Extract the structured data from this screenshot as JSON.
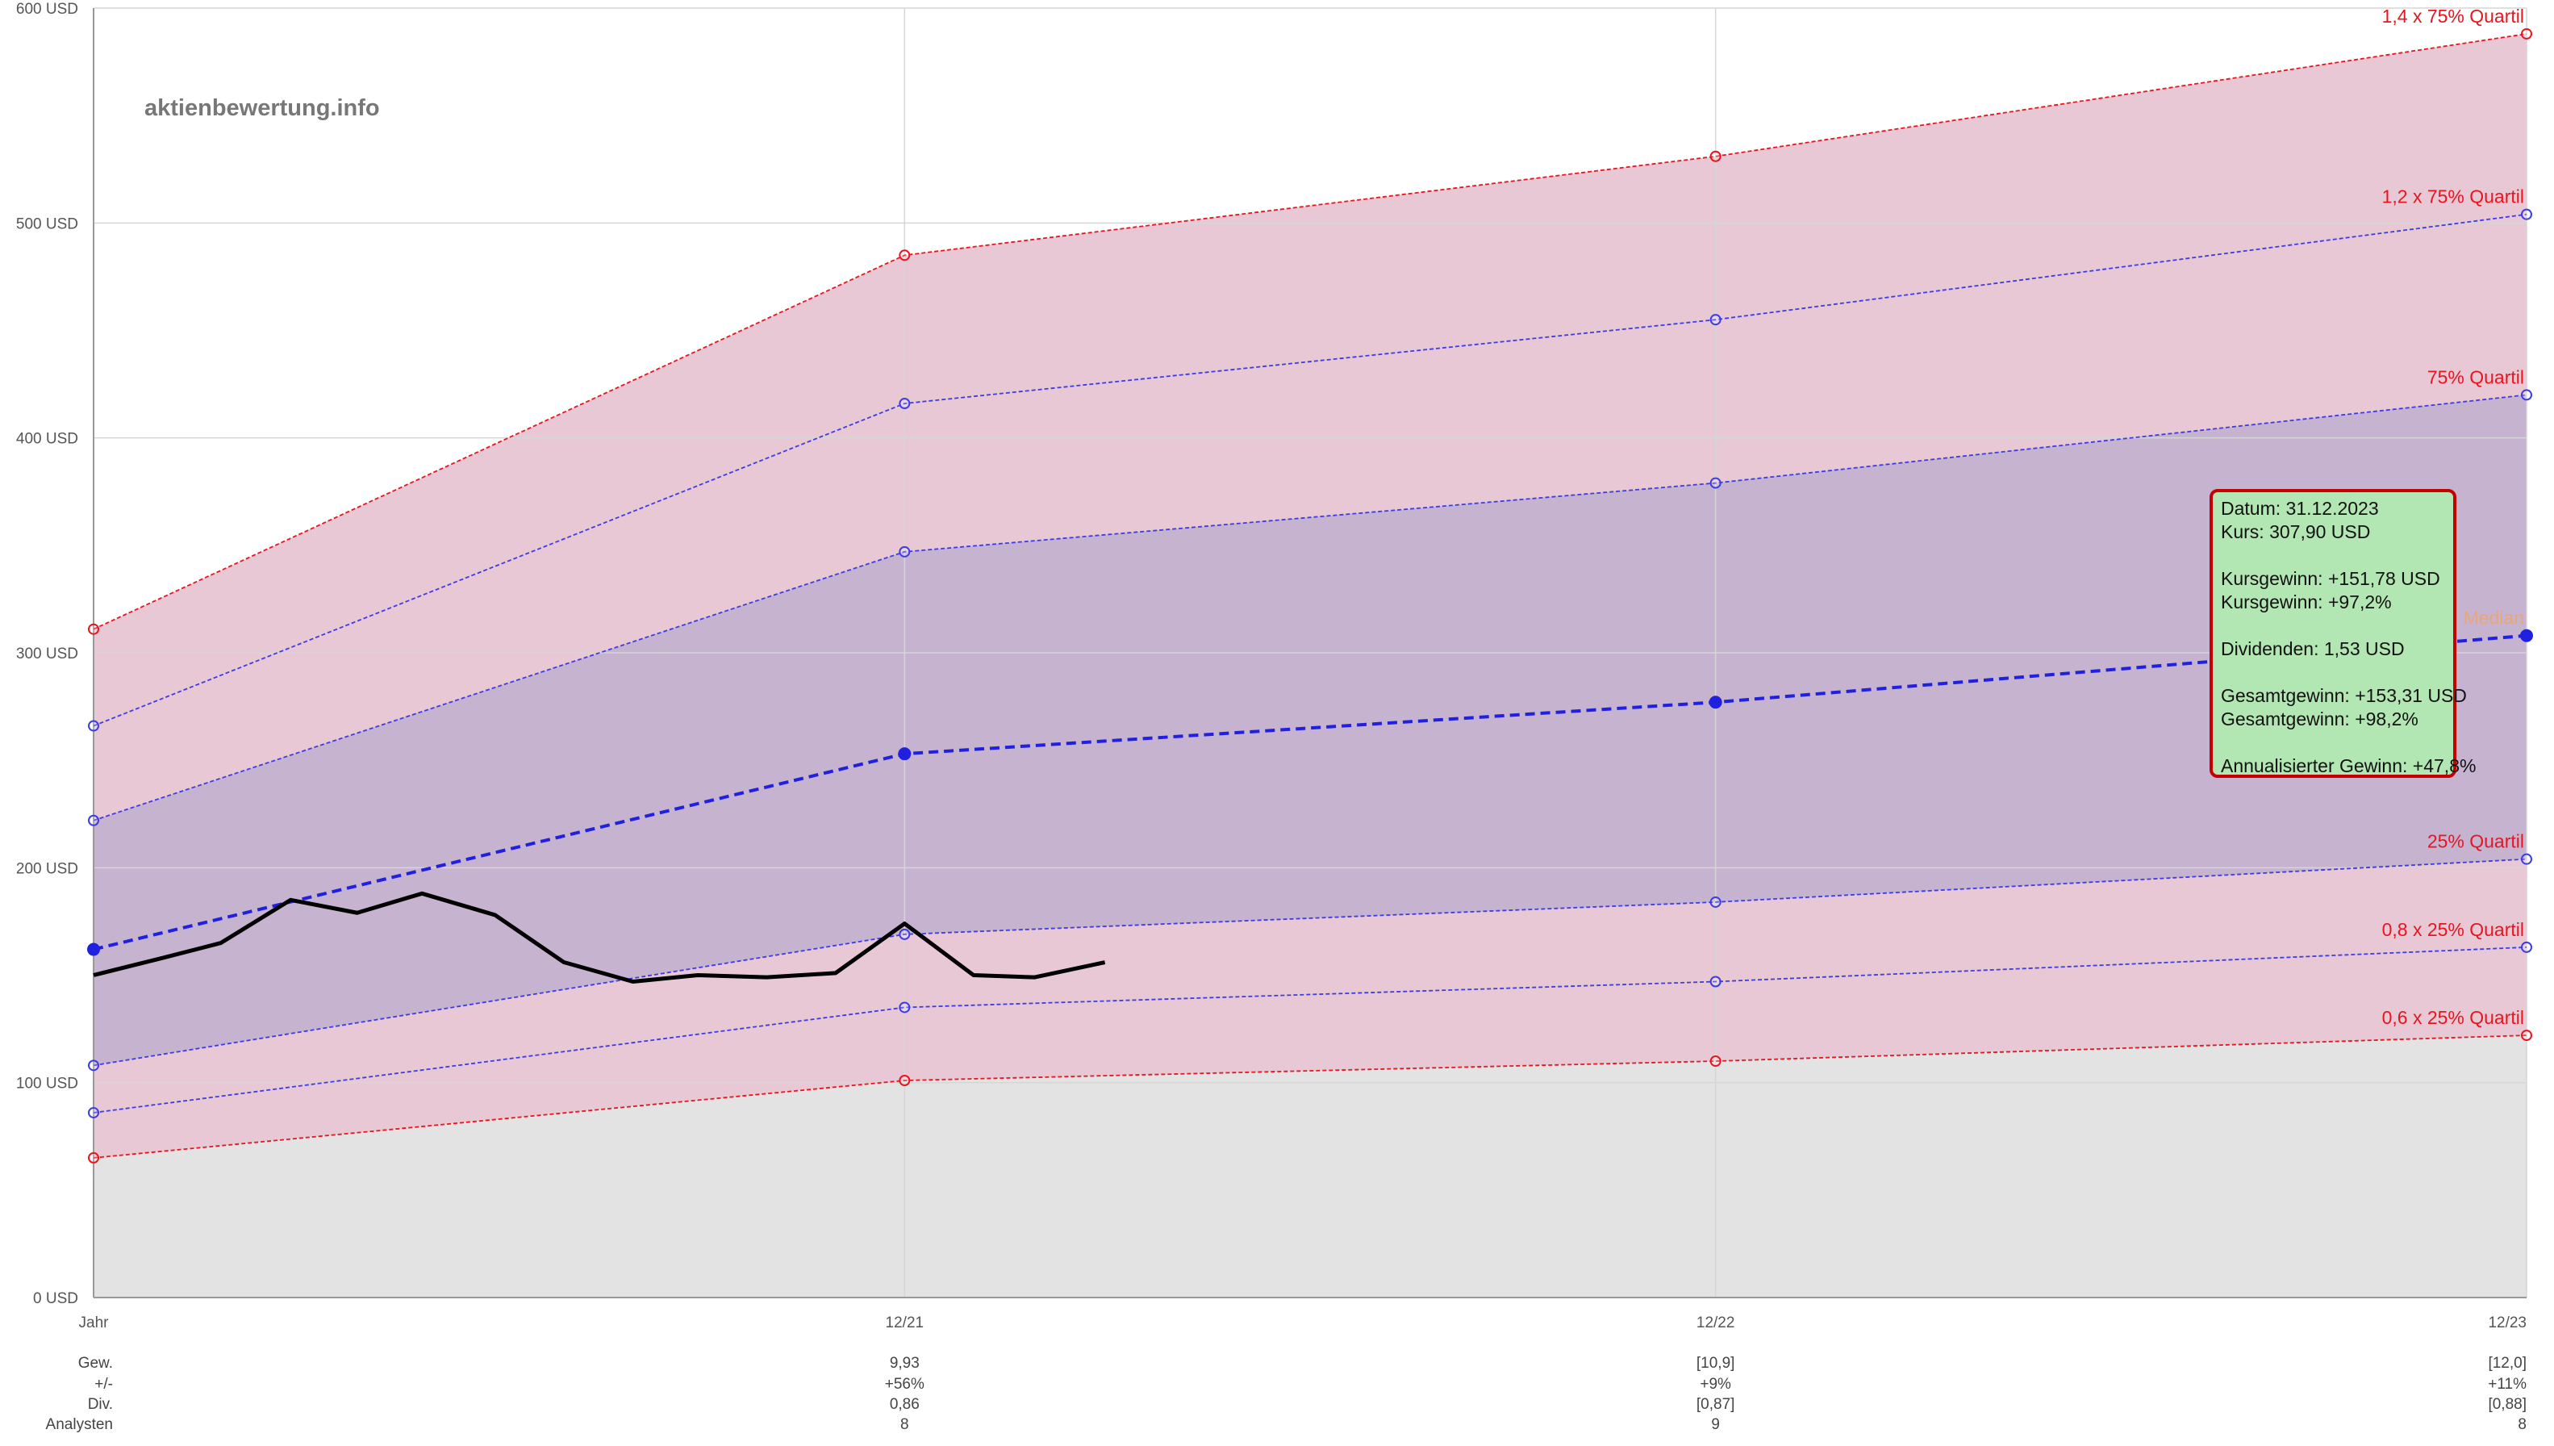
{
  "watermark": "aktienbewertung.info",
  "chart_data": {
    "type": "area",
    "y_axis": {
      "min": 0,
      "max": 600,
      "unit": "USD",
      "tick_labels": [
        "0 USD",
        "100 USD",
        "200 USD",
        "300 USD",
        "400 USD",
        "500 USD",
        "600 USD"
      ]
    },
    "x_axis": {
      "tick_labels": [
        "Jahr",
        "12/21",
        "12/22",
        "12/23"
      ]
    },
    "grid": true,
    "bands": [
      {
        "name": "1,4 x 75% Quartil",
        "color": "#e8141e",
        "values": [
          311,
          485,
          531,
          588
        ]
      },
      {
        "name": "1,2 x 75% Quartil",
        "color": "#3c3ce6",
        "values": [
          266,
          416,
          455,
          504
        ]
      },
      {
        "name": "75% Quartil",
        "color": "#3c3ce6",
        "values": [
          222,
          347,
          379,
          420
        ]
      },
      {
        "name": "Median",
        "color": "#2020e0",
        "values": [
          162,
          253,
          277,
          308
        ]
      },
      {
        "name": "25% Quartil",
        "color": "#3c3ce6",
        "values": [
          108,
          169,
          184,
          204
        ]
      },
      {
        "name": "0,8 x 25% Quartil",
        "color": "#3c3ce6",
        "values": [
          86,
          135,
          147,
          163
        ]
      },
      {
        "name": "0,6 x 25% Quartil",
        "color": "#e8141e",
        "values": [
          65,
          101,
          110,
          122
        ]
      }
    ],
    "price_series": {
      "x": [
        0,
        0.085,
        0.157,
        0.243,
        0.325,
        0.405,
        0.495,
        0.58,
        0.665,
        0.745,
        0.83,
        0.915,
        1.0,
        1.085,
        1.16,
        1.247
      ],
      "y": [
        150,
        158,
        165,
        185,
        179,
        188,
        178,
        156,
        147,
        150,
        149,
        151,
        174,
        150,
        149,
        156
      ]
    },
    "table": {
      "row_labels": [
        "Gew.",
        "+/-",
        "Div.",
        "Analysten"
      ],
      "columns": [
        [
          "9,93",
          "+56%",
          "0,86",
          "8"
        ],
        [
          "[10,9]",
          "+9%",
          "[0,87]",
          "9"
        ],
        [
          "[12,0]",
          "+11%",
          "[0,88]",
          "8"
        ]
      ]
    }
  },
  "tooltip": {
    "lines": [
      "Datum: 31.12.2023",
      "Kurs: 307,90 USD",
      "",
      "Kursgewinn: +151,78 USD",
      "Kursgewinn: +97,2%",
      "",
      "Dividenden: 1,53 USD",
      "",
      "Gesamtgewinn: +153,31 USD",
      "Gesamtgewinn: +98,2%",
      "",
      "Annualisierter Gewinn: +47,8%"
    ]
  },
  "colors": {
    "outer_fill": "#e8c8d5",
    "inner_fill": "#c6b3d0",
    "base_fill": "#e3e3e3",
    "price_line": "#000000",
    "tooltip_bg": "#b2e6b2",
    "tooltip_border": "#c40000"
  }
}
